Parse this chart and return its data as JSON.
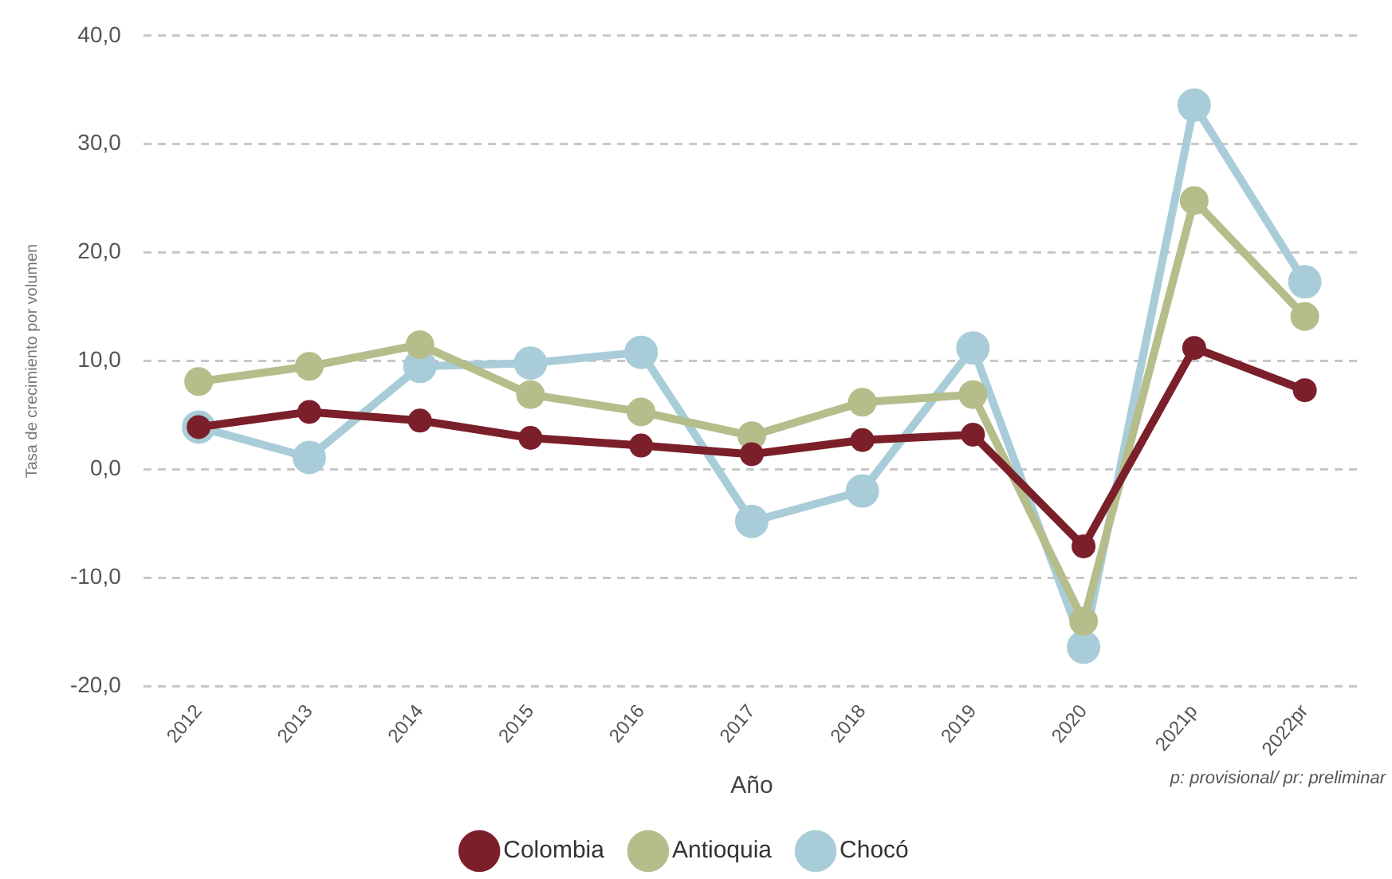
{
  "chart_data": {
    "type": "line",
    "xlabel": "Año",
    "ylabel": "Tasa de crecimiento por volumen",
    "categories": [
      "2012",
      "2013",
      "2014",
      "2015",
      "2016",
      "2017",
      "2018",
      "2019",
      "2020",
      "2021p",
      "2022pr"
    ],
    "series": [
      {
        "name": "Colombia",
        "color": "#7b1f2a",
        "values": [
          3.9,
          5.3,
          4.5,
          2.9,
          2.2,
          1.4,
          2.7,
          3.2,
          -7.1,
          11.2,
          7.3
        ]
      },
      {
        "name": "Antioquia",
        "color": "#b5bd8a",
        "values": [
          8.1,
          9.5,
          11.5,
          6.9,
          5.3,
          3.1,
          6.2,
          6.9,
          -14.0,
          24.8,
          14.1
        ]
      },
      {
        "name": "Chocó",
        "color": "#a9cdd8",
        "values": [
          3.9,
          1.1,
          9.5,
          9.8,
          10.8,
          -4.8,
          -2.0,
          11.2,
          -16.4,
          33.6,
          17.3
        ]
      }
    ],
    "ylim": [
      -20,
      40
    ],
    "yticks": [
      {
        "value": -20,
        "label": "-20,0"
      },
      {
        "value": -10,
        "label": "-10,0"
      },
      {
        "value": 0,
        "label": "0,0"
      },
      {
        "value": 10,
        "label": "10,0"
      },
      {
        "value": 20,
        "label": "20,0"
      },
      {
        "value": 30,
        "label": "30,0"
      },
      {
        "value": 40,
        "label": "40,0"
      }
    ],
    "grid": "y",
    "legend": "bottom",
    "marker": "circle",
    "line_style": "solid",
    "annotations": [
      "p: provisional/ pr: preliminar"
    ]
  }
}
